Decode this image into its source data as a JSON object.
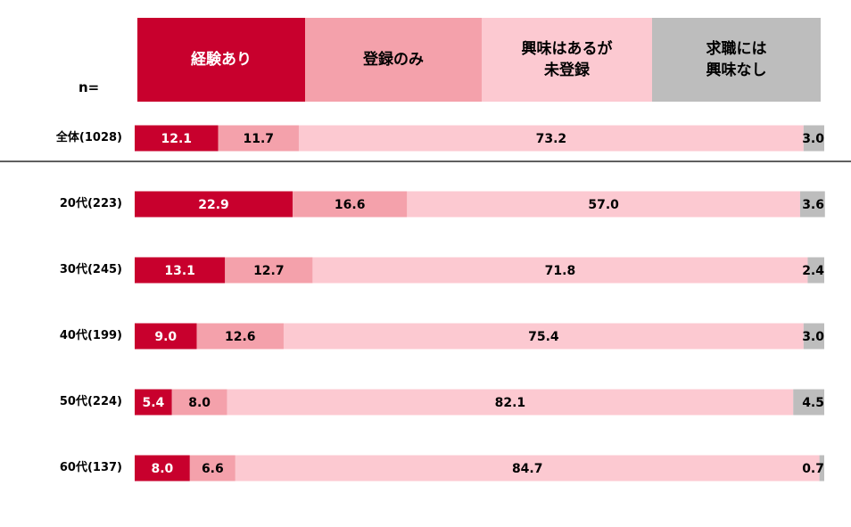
{
  "colors": {
    "experienced": "#c8002d",
    "registered_only": "#f4a1ab",
    "interested_not_registered": "#fcc9d1",
    "not_interested": "#bdbdbd",
    "divider": "#000000"
  },
  "n_label": "n=",
  "legend": [
    {
      "label": "経験あり",
      "color": "#c8002d",
      "text_color": "#ffffff"
    },
    {
      "label": "登録のみ",
      "color": "#f4a1ab",
      "text_color": "#000000"
    },
    {
      "label": "興味はあるが\n未登録",
      "color": "#fcc9d1",
      "text_color": "#000000"
    },
    {
      "label": "求職には\n興味なし",
      "color": "#bdbdbd",
      "text_color": "#000000"
    }
  ],
  "chart_data": {
    "type": "bar",
    "orientation": "horizontal",
    "stacked": true,
    "normalized": true,
    "categories": [
      "全体(1028)",
      "20代(223)",
      "30代(245)",
      "40代(199)",
      "50代(224)",
      "60代(137)"
    ],
    "series": [
      {
        "name": "経験あり",
        "values": [
          12.1,
          22.9,
          13.1,
          9.0,
          5.4,
          8.0
        ]
      },
      {
        "name": "登録のみ",
        "values": [
          11.7,
          16.6,
          12.7,
          12.6,
          8.0,
          6.6
        ]
      },
      {
        "name": "興味はあるが未登録",
        "values": [
          73.2,
          57.0,
          71.8,
          75.4,
          82.1,
          84.7
        ]
      },
      {
        "name": "求職には興味なし",
        "values": [
          3.0,
          3.6,
          2.4,
          3.0,
          4.5,
          0.7
        ]
      }
    ],
    "value_labels": [
      [
        "12.1",
        "11.7",
        "73.2",
        "3.0"
      ],
      [
        "22.9",
        "16.6",
        "57.0",
        "3.6"
      ],
      [
        "13.1",
        "12.7",
        "71.8",
        "2.4"
      ],
      [
        "9.0",
        "12.6",
        "75.4",
        "3.0"
      ],
      [
        "5.4",
        "8.0",
        "82.1",
        "4.5"
      ],
      [
        "8.0",
        "6.6",
        "84.7",
        "0.7"
      ]
    ],
    "xlim": [
      0,
      100
    ],
    "grid": false,
    "legend_position": "top"
  }
}
